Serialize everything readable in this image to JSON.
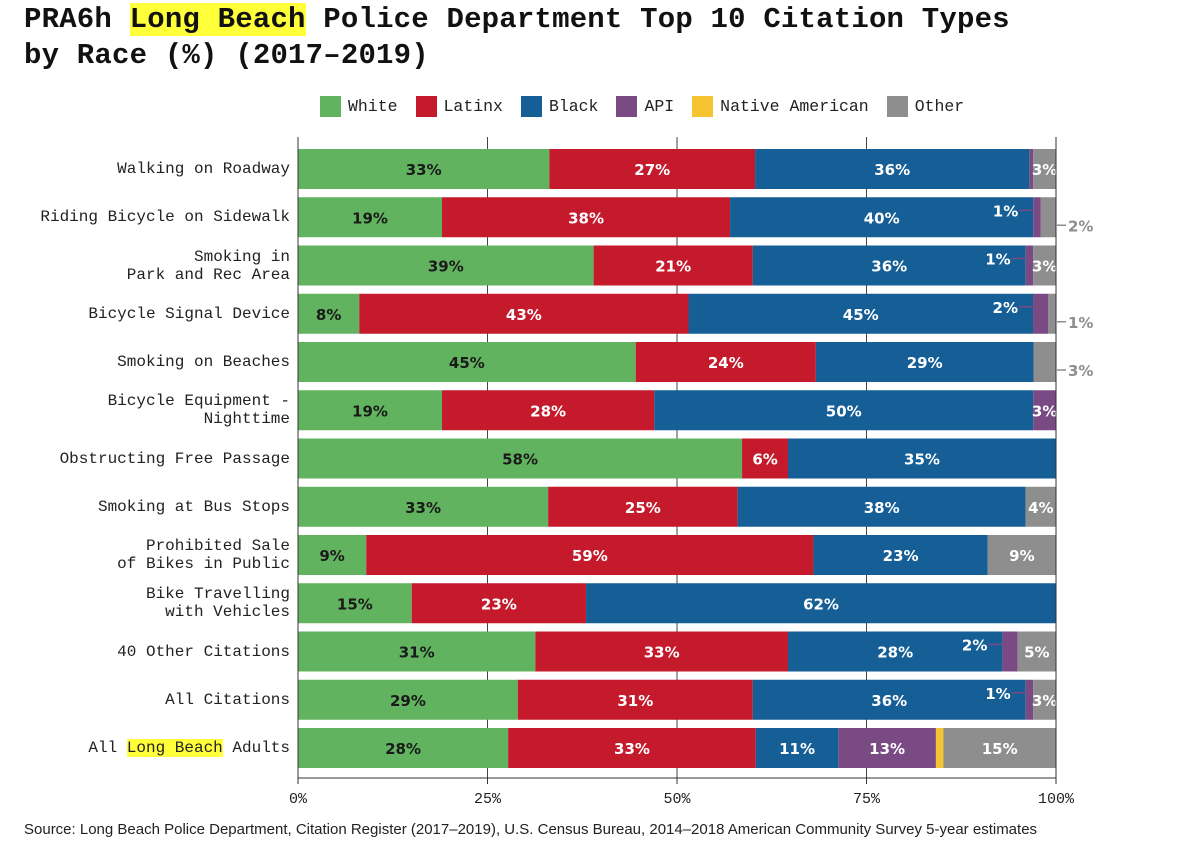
{
  "title_parts": [
    "PRA6h ",
    "Long Beach",
    " Police Department Top 10 Citation Types",
    "by Race (%) (2017–2019)"
  ],
  "source": "Source: Long Beach Police Department, Citation Register (2017–2019), U.S. Census Bureau, 2014–2018 American Community Survey 5-year estimates",
  "chart_data": {
    "type": "bar",
    "orientation": "horizontal",
    "stacked": true,
    "title": "PRA6h Long Beach Police Department Top 10 Citation Types by Race (%) (2017–2019)",
    "xlabel": "",
    "ylabel": "",
    "xlim": [
      0,
      100
    ],
    "xticks": [
      "0%",
      "25%",
      "50%",
      "75%",
      "100%"
    ],
    "legend_position": "top",
    "series": [
      {
        "name": "White",
        "color": "#62b35f"
      },
      {
        "name": "Latinx",
        "color": "#c41a2c"
      },
      {
        "name": "Black",
        "color": "#155e96"
      },
      {
        "name": "API",
        "color": "#7a4a85"
      },
      {
        "name": "Native American",
        "color": "#f6c431"
      },
      {
        "name": "Other",
        "color": "#8e8e8e"
      }
    ],
    "highlight_phrase": "Long Beach",
    "rows": [
      {
        "category": [
          "Walking on Roadway"
        ],
        "values": [
          33,
          27,
          36,
          0.5,
          0,
          3
        ],
        "labels": [
          "33%",
          "27%",
          "36%",
          null,
          null,
          "3%"
        ],
        "callouts": []
      },
      {
        "category": [
          "Riding Bicycle on Sidewalk"
        ],
        "values": [
          19,
          38,
          40,
          1,
          0,
          2
        ],
        "labels": [
          "19%",
          "38%",
          "40%",
          "1%",
          null,
          "2%"
        ],
        "callouts": [
          3,
          5
        ]
      },
      {
        "category": [
          "Smoking in",
          "Park and Rec Area"
        ],
        "values": [
          39,
          21,
          36,
          1,
          0,
          3
        ],
        "labels": [
          "39%",
          "21%",
          "36%",
          "1%",
          null,
          "3%"
        ],
        "callouts": [
          3
        ]
      },
      {
        "category": [
          "Bicycle Signal Device"
        ],
        "values": [
          8,
          43,
          45,
          2,
          0,
          1
        ],
        "labels": [
          "8%",
          "43%",
          "45%",
          "2%",
          null,
          "1%"
        ],
        "callouts": [
          3,
          5
        ]
      },
      {
        "category": [
          "Smoking on Beaches"
        ],
        "values": [
          45,
          24,
          29,
          0,
          0,
          3
        ],
        "labels": [
          "45%",
          "24%",
          "29%",
          null,
          null,
          "3%"
        ],
        "callouts": [
          5
        ]
      },
      {
        "category": [
          "Bicycle Equipment -",
          "Nighttime"
        ],
        "values": [
          19,
          28,
          50,
          3,
          0,
          0
        ],
        "labels": [
          "19%",
          "28%",
          "50%",
          "3%",
          null,
          null
        ],
        "callouts": []
      },
      {
        "category": [
          "Obstructing Free Passage"
        ],
        "values": [
          58,
          6,
          35,
          0,
          0,
          0
        ],
        "labels": [
          "58%",
          "6%",
          "35%",
          null,
          null,
          null
        ],
        "callouts": []
      },
      {
        "category": [
          "Smoking at Bus Stops"
        ],
        "values": [
          33,
          25,
          38,
          0,
          0,
          4
        ],
        "labels": [
          "33%",
          "25%",
          "38%",
          null,
          null,
          "4%"
        ],
        "callouts": []
      },
      {
        "category": [
          "Prohibited Sale",
          "of Bikes in Public"
        ],
        "values": [
          9,
          59,
          23,
          0,
          0,
          9
        ],
        "labels": [
          "9%",
          "59%",
          "23%",
          null,
          null,
          "9%"
        ],
        "callouts": []
      },
      {
        "category": [
          "Bike Travelling",
          "with Vehicles"
        ],
        "values": [
          15,
          23,
          62,
          0,
          0,
          0
        ],
        "labels": [
          "15%",
          "23%",
          "62%",
          null,
          null,
          null
        ],
        "callouts": []
      },
      {
        "category": [
          "40 Other Citations"
        ],
        "values": [
          31,
          33,
          28,
          2,
          0,
          5
        ],
        "labels": [
          "31%",
          "33%",
          "28%",
          "2%",
          null,
          "5%"
        ],
        "callouts": [
          3
        ]
      },
      {
        "category": [
          "All Citations"
        ],
        "values": [
          29,
          31,
          36,
          1,
          0,
          3
        ],
        "labels": [
          "29%",
          "31%",
          "36%",
          "1%",
          null,
          "3%"
        ],
        "callouts": [
          3
        ]
      },
      {
        "category": [
          "All Long Beach Adults"
        ],
        "values": [
          28,
          33,
          11,
          13,
          1,
          15
        ],
        "labels": [
          "28%",
          "33%",
          "11%",
          "13%",
          "1%",
          "15%"
        ],
        "callouts": [
          4
        ]
      }
    ]
  }
}
